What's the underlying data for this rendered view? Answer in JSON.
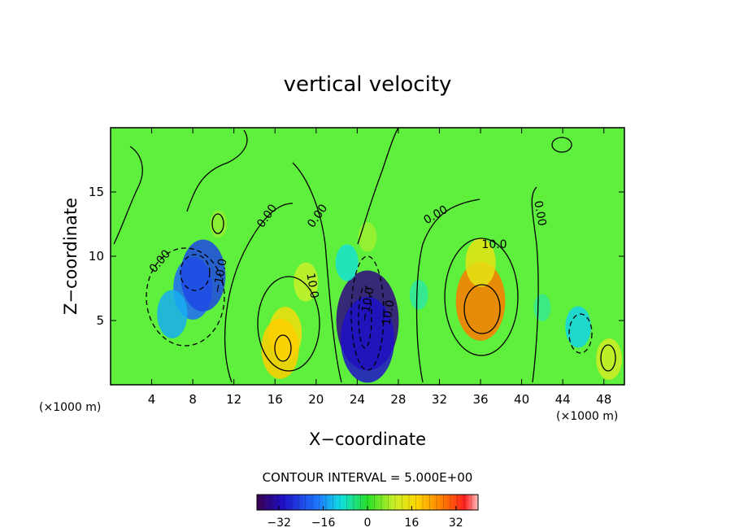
{
  "chart_data": {
    "type": "heatmap",
    "title": "vertical velocity",
    "xlabel": "X−coordinate",
    "ylabel": "Z−coordinate",
    "x_unit_label": "(×1000 m)",
    "y_unit_label": "(×1000 m)",
    "xlim": [
      0,
      50
    ],
    "ylim": [
      0,
      20
    ],
    "x_ticks": [
      4,
      8,
      12,
      16,
      20,
      24,
      28,
      32,
      36,
      40,
      44,
      48
    ],
    "y_ticks": [
      5,
      10,
      15
    ],
    "contour_interval_text": "CONTOUR INTERVAL = 5.000E+00",
    "contour_interval": 5,
    "colorbar": {
      "range": [
        -40,
        40
      ],
      "ticks": [
        -32,
        -16,
        0,
        16,
        32
      ],
      "tick_labels": [
        "−32",
        "−16",
        "0",
        "16",
        "32"
      ]
    },
    "cells": [
      {
        "x": 8,
        "z": 7.5,
        "w": -20
      },
      {
        "x": 9,
        "z": 8.5,
        "w": -24
      },
      {
        "x": 6,
        "z": 5.5,
        "w": -14
      },
      {
        "x": 17,
        "z": 4.0,
        "w": 16
      },
      {
        "x": 16.5,
        "z": 2.8,
        "w": 19
      },
      {
        "x": 19,
        "z": 8.0,
        "w": 10
      },
      {
        "x": 25,
        "z": 5.0,
        "w": -36
      },
      {
        "x": 25,
        "z": 3.5,
        "w": -30
      },
      {
        "x": 23,
        "z": 9.5,
        "w": -9
      },
      {
        "x": 25,
        "z": 11.5,
        "w": 6
      },
      {
        "x": 36,
        "z": 6.5,
        "w": 27
      },
      {
        "x": 36,
        "z": 9.5,
        "w": 14
      },
      {
        "x": 45.5,
        "z": 4.5,
        "w": -11
      },
      {
        "x": 48.5,
        "z": 2.0,
        "w": 11
      },
      {
        "x": 10.5,
        "z": 12.5,
        "w": 5
      },
      {
        "x": 30,
        "z": 7,
        "w": -6
      },
      {
        "x": 42,
        "z": 6,
        "w": -5
      }
    ],
    "contour_labels": [
      "0.00",
      "0.00",
      "0.00",
      "0.00",
      "0.00",
      "10.0",
      "−10.0",
      "10.0",
      "−10.0",
      "10.0"
    ]
  },
  "colors": {
    "background": "#ffffff",
    "frame": "#000000",
    "contour_line": "#000000"
  }
}
